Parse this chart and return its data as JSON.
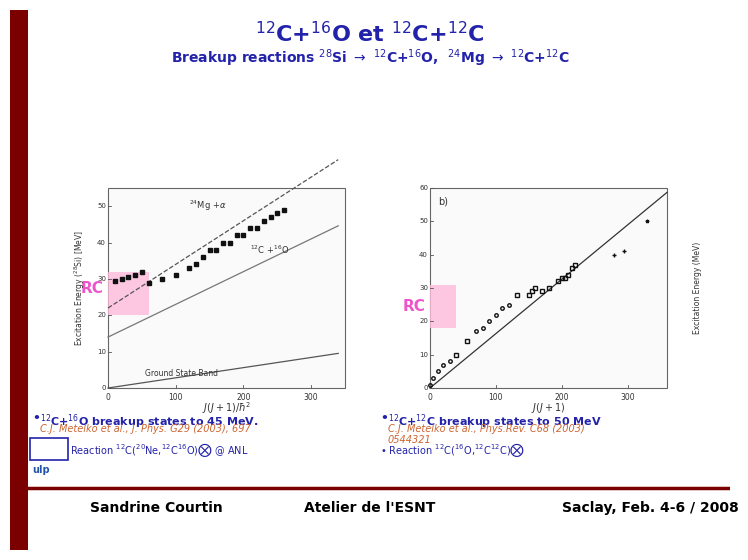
{
  "title": "$^{12}$C+$^{16}$O et $^{12}$C+$^{12}$C",
  "title_color": "#2222AA",
  "title_fontsize": 16,
  "subtitle": "Breakup reactions $^{28}$Si $\\rightarrow$ $^{12}$C+$^{16}$O,  $^{24}$Mg $\\rightarrow$ $^{12}$C+$^{12}$C",
  "subtitle_color": "#2222AA",
  "subtitle_fontsize": 10,
  "bg_color": "#FFFFFF",
  "left_bar_color": "#7B0000",
  "rc_label_color": "#EE55CC",
  "rc_highlight_color": "#FFBBDD",
  "blue_text_color": "#2222AA",
  "ref_text_color": "#CC6633",
  "footer_text_color": "#000000",
  "footer_line_color": "#7B0000",
  "plot1_label": "$^{12}$C+$^{16}$O breakup states to 45 MeV.",
  "plot1_ref": "C.J. Metelko et al., J. Phys. G29 (2003), 697",
  "plot1_reaction": "Reaction $^{12}$C($^{20}$Ne,$^{12}$C$^{16}$O)$\\bigotimes$ @ ANL",
  "plot2_label": "$^{12}$C+$^{12}$C breakup states to 50 MeV",
  "plot2_ref1": "C.J. Metelko et al., Phys.Rev. C68 (2003)",
  "plot2_ref2": "0544321",
  "plot2_reaction": "Reaction $^{12}$C($^{16}$O,$^{12}$C$^{12}$C)$\\bigotimes$",
  "footer_left": "Sandrine Courtin",
  "footer_center": "Atelier de l'ESNT",
  "footer_right": "Saclay, Feb. 4-6 / 2008"
}
